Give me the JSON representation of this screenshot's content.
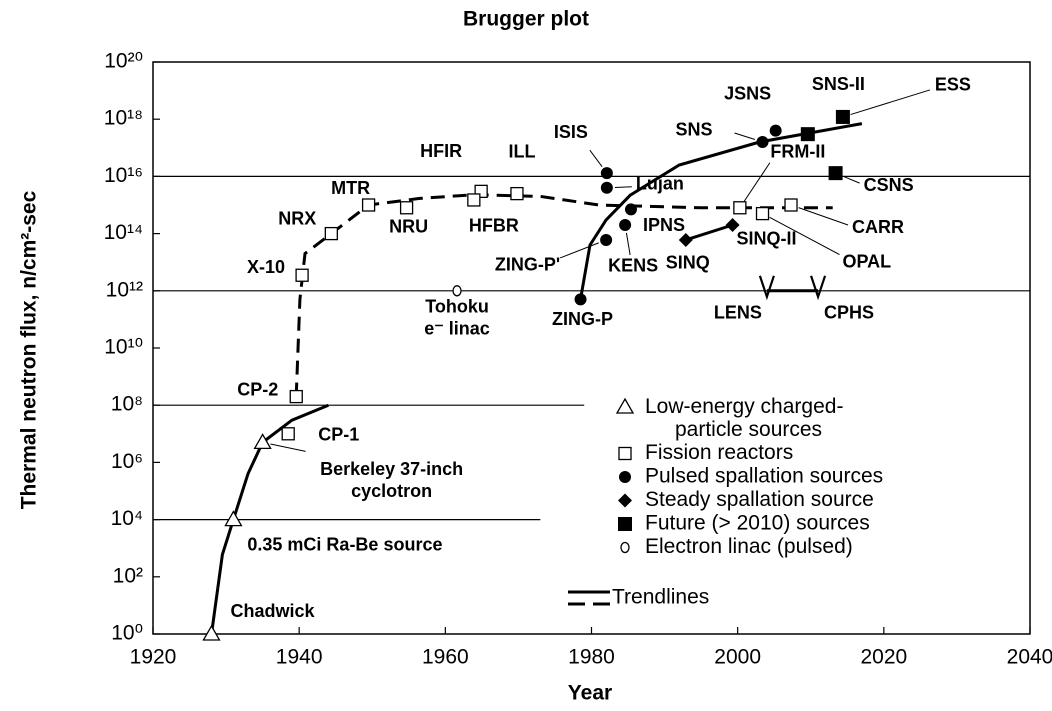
{
  "chart_data": {
    "type": "scatter",
    "title": "Brugger plot",
    "x_label": "Year",
    "y_label": "Thermal neutron flux, n/cm²-sec",
    "log_y": true,
    "xlim": [
      1920,
      2040
    ],
    "xticks": [
      1920,
      1940,
      1960,
      1980,
      2000,
      2020,
      2040
    ],
    "ylim": [
      1,
      1e+20
    ],
    "yticks": [
      {
        "value": 1,
        "label": "10⁰"
      },
      {
        "value": 100,
        "label": "10²"
      },
      {
        "value": 10000.0,
        "label": "10⁴"
      },
      {
        "value": 1000000.0,
        "label": "10⁶"
      },
      {
        "value": 100000000.0,
        "label": "10⁸"
      },
      {
        "value": 10000000000.0,
        "label": "10¹⁰"
      },
      {
        "value": 1000000000000.0,
        "label": "10¹²"
      },
      {
        "value": 100000000000000.0,
        "label": "10¹⁴"
      },
      {
        "value": 1e+16,
        "label": "10¹⁶"
      },
      {
        "value": 1e+18,
        "label": "10¹⁸"
      },
      {
        "value": 1e+20,
        "label": "10²⁰"
      }
    ],
    "reference_lines": [
      {
        "y": 1e+16,
        "x": [
          1920,
          2040
        ]
      },
      {
        "y": 1000000000000.0,
        "x": [
          1920,
          2040
        ]
      },
      {
        "y": 100000000.0,
        "x": [
          1920,
          1979
        ]
      },
      {
        "y": 10000.0,
        "x": [
          1920,
          1973
        ]
      }
    ],
    "series": [
      {
        "name": "Low-energy charged-particle sources",
        "color": "#000000",
        "marker": "triangle-open",
        "labels": [
          "Chadwick",
          "0.35 mCi Ra-Be source",
          [
            "Berkeley 37-inch",
            "cyclotron"
          ]
        ],
        "x": [
          1928,
          1931,
          1935
        ],
        "values": [
          1,
          10000.0,
          5000000.0
        ]
      },
      {
        "name": "Fission reactors",
        "color": "#000000",
        "marker": "square-open",
        "labels": [
          "CP-1",
          "CP-2",
          "X-10",
          "NRX",
          "MTR",
          "NRU",
          "HFIR",
          "HFBR",
          "ILL",
          "FRM-II",
          "OPAL",
          "CARR"
        ],
        "x": [
          1938.5,
          1939.6,
          1940.4,
          1944.4,
          1949.5,
          1954.7,
          1964.9,
          1963.9,
          1969.8,
          2000.3,
          2003.4,
          2007.3
        ],
        "values": [
          10000000.0,
          200000000.0,
          3500000000000.0,
          100000000000000.0,
          1000000000000000.0,
          800000000000000.0,
          3000000000000000.0,
          1500000000000000.0,
          2500000000000000.0,
          800000000000000.0,
          500000000000000.0,
          1000000000000000.0
        ]
      },
      {
        "name": "Pulsed spallation sources",
        "color": "#000000",
        "marker": "circle",
        "labels": [
          "ZING-P",
          "ZING-P'",
          "KENS",
          "IPNS",
          "Lujan",
          "ISIS",
          "SNS",
          "JSNS"
        ],
        "x": [
          1978.5,
          1982,
          1984.6,
          1985.4,
          1982.1,
          1982.1,
          2003.4,
          2005.2
        ],
        "values": [
          500000000000.0,
          60000000000000.0,
          200000000000000.0,
          700000000000000.0,
          4000000000000000.0,
          1.3e+16,
          1.6e+17,
          4e+17
        ]
      },
      {
        "name": "Steady spallation source",
        "color": "#000000",
        "marker": "diamond",
        "labels": [
          "SINQ",
          "SINQ-II"
        ],
        "x": [
          1992.9,
          1999.3
        ],
        "values": [
          60000000000000.0,
          200000000000000.0
        ]
      },
      {
        "name": "Future (> 2010) sources",
        "color": "#000000",
        "marker": "square",
        "labels": [
          "SNS-II",
          "ESS",
          "CSNS"
        ],
        "x": [
          2009.6,
          2014.4,
          2013.4
        ],
        "values": [
          3e+17,
          1.2e+18,
          1.3e+16
        ]
      },
      {
        "name": "Electron linac (pulsed)",
        "color": "#000000",
        "marker": "circle-open-small",
        "labels": [
          [
            "Tohoku",
            "e⁻ linac"
          ]
        ],
        "x": [
          1961.6
        ],
        "values": [
          1000000000000.0
        ]
      },
      {
        "color": "#000000",
        "marker": "v",
        "labels": [
          "LENS",
          "CPHS"
        ],
        "x": [
          2004,
          2011
        ],
        "values": [
          1000000000000.0,
          1000000000000.0
        ]
      }
    ],
    "trendlines": {
      "name": "Trendlines",
      "lines": [
        {
          "style": "solid",
          "x": [
            1928,
            1929.5,
            1931,
            1933,
            1935,
            1939,
            1944
          ],
          "y": [
            1,
            600,
            10000.0,
            400000.0,
            5000000.0,
            30000000.0,
            100000000.0
          ]
        },
        {
          "style": "dashed",
          "x": [
            1939.6,
            1940.1,
            1940.8,
            1944.4,
            1949.5,
            1956.5,
            1964,
            1973,
            1981,
            1995,
            2013
          ],
          "y": [
            200000000.0,
            500000000000.0,
            20000000000000.0,
            100000000000000.0,
            1000000000000000.0,
            1700000000000000.0,
            2300000000000000.0,
            2000000000000000.0,
            1000000000000000.0,
            800000000000000.0,
            800000000000000.0
          ]
        },
        {
          "style": "solid",
          "x": [
            1978.5,
            1979.8,
            1982,
            1985.3,
            1992,
            2003,
            2017
          ],
          "y": [
            500000000000.0,
            40000000000000.0,
            300000000000000.0,
            2200000000000000.0,
            2.5e+16,
            1.6e+17,
            7e+17
          ]
        },
        {
          "style": "solid",
          "x": [
            1992.9,
            1999.3
          ],
          "y": [
            60000000000000.0,
            200000000000000.0
          ]
        },
        {
          "style": "solid",
          "x": [
            2004,
            2011
          ],
          "y": [
            1000000000000.0,
            1000000000000.0
          ]
        }
      ]
    }
  }
}
